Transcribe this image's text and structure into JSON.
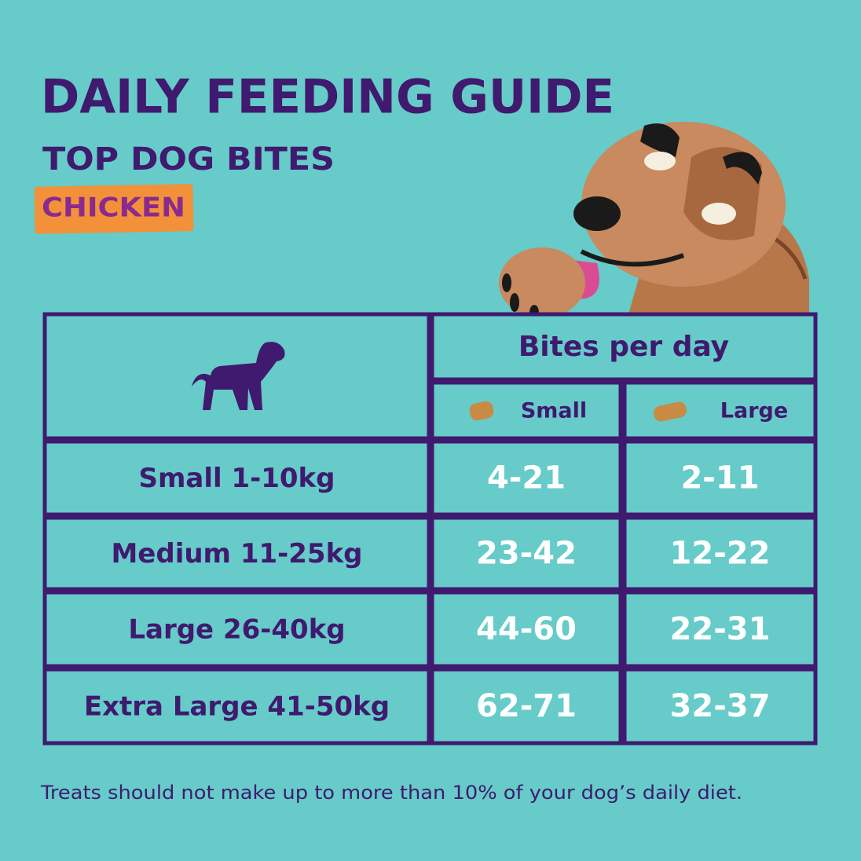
{
  "header": {
    "title": "DAILY FEEDING GUIDE",
    "subtitle": "TOP DOG BITES",
    "flavor": "CHICKEN"
  },
  "table": {
    "group_header": "Bites per day",
    "columns": [
      "Small",
      "Large"
    ],
    "rows": [
      [
        "Small 1-10kg",
        "4-21",
        "2-11"
      ],
      [
        "Medium 11-25kg",
        "23-42",
        "12-22"
      ],
      [
        "Large 26-40kg",
        "44-60",
        "22-31"
      ],
      [
        "Extra Large 41-50kg",
        "62-71",
        "32-37"
      ]
    ]
  },
  "footnote": "Treats should not make up to more than 10% of your dog’s daily diet."
}
